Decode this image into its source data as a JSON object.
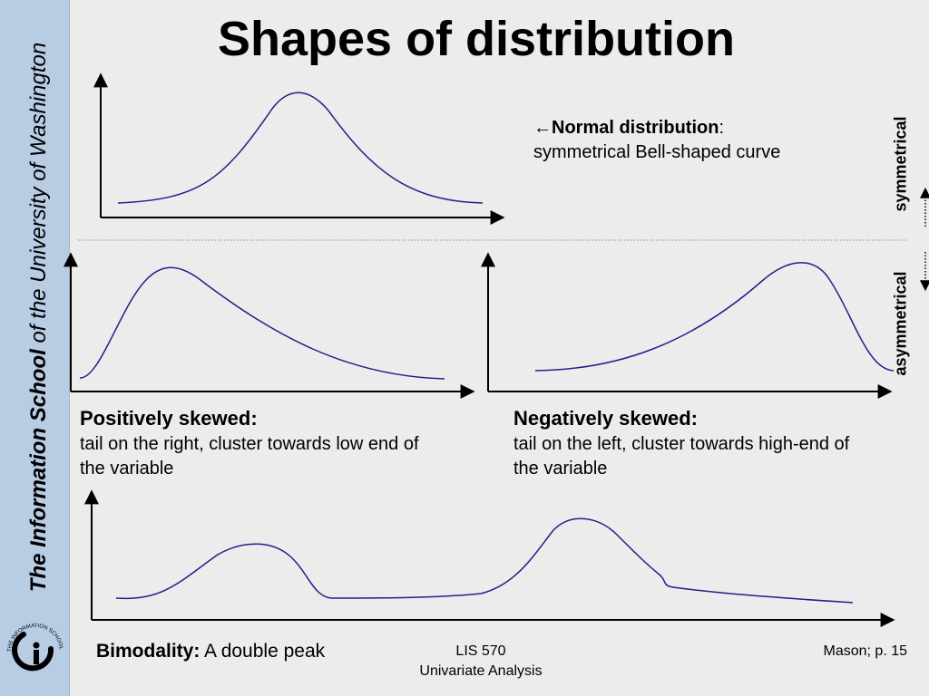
{
  "sidebar": {
    "title_bold": "The Information School",
    "title_rest": " of the University of Washington",
    "logo_text": "THE INFORMATION SCHOOL"
  },
  "slide": {
    "title": "Shapes of distribution",
    "normal": {
      "arrow": "←",
      "heading": "Normal distribution",
      "colon": ":",
      "description": "symmetrical Bell-shaped curve"
    },
    "positive": {
      "heading": "Positively skewed:",
      "description": "tail on the right, cluster towards low end of the variable"
    },
    "negative": {
      "heading": "Negatively skewed:",
      "description": "tail on the left, cluster towards high-end of the variable"
    },
    "bimodal": {
      "heading": "Bimodality:",
      "description": " A double peak"
    },
    "labels": {
      "symmetrical": "symmetrical",
      "asymmetrical": "asymmetrical"
    }
  },
  "footer": {
    "course": "LIS 570",
    "subtitle": "Univariate Analysis",
    "source": "Mason; p. 15"
  },
  "colors": {
    "curve": "#1f1f8a",
    "sidebar": "#b8cce4",
    "background": "#ececec"
  }
}
